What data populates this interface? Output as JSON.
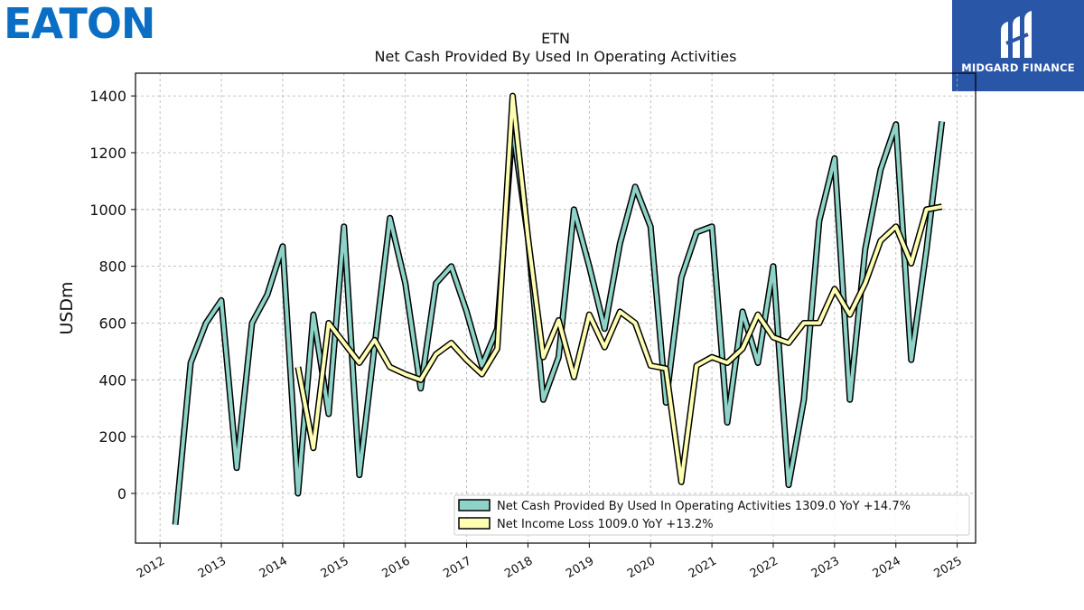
{
  "logos": {
    "eaton": "EATON",
    "midgard": "MIDGARD FINANCE"
  },
  "colors": {
    "ocf": "#8dd3c7",
    "net_income": "#ffffb3",
    "outline": "#000000",
    "grid": "#b0b0b0",
    "eaton_blue": "#0a6fc4",
    "midgard_blue": "#2a56a8"
  },
  "chart_data": {
    "type": "line",
    "title": "ETN",
    "subtitle": "Net Cash Provided By Used In Operating Activities",
    "xlabel": "",
    "ylabel": "USDm",
    "xlim": [
      2011.6,
      2025.3
    ],
    "ylim": [
      -175,
      1480
    ],
    "x_ticks": [
      "2012",
      "2013",
      "2014",
      "2015",
      "2016",
      "2017",
      "2018",
      "2019",
      "2020",
      "2021",
      "2022",
      "2023",
      "2024",
      "2025"
    ],
    "y_ticks": [
      "0",
      "200",
      "400",
      "600",
      "800",
      "1000",
      "1200",
      "1400"
    ],
    "grid": true,
    "legend_position": "lower right",
    "series": [
      {
        "name": "Net Cash Provided By Used In Operating Activities",
        "legend_label": "Net Cash Provided By Used In Operating Activities  1309.0 YoY +14.7%",
        "color": "#8dd3c7",
        "x": [
          2012.25,
          2012.5,
          2012.75,
          2013.0,
          2013.25,
          2013.5,
          2013.75,
          2014.0,
          2014.25,
          2014.5,
          2014.75,
          2015.0,
          2015.25,
          2015.5,
          2015.75,
          2016.0,
          2016.25,
          2016.5,
          2016.75,
          2017.0,
          2017.25,
          2017.5,
          2017.75,
          2018.0,
          2018.25,
          2018.5,
          2018.75,
          2019.0,
          2019.25,
          2019.5,
          2019.75,
          2020.0,
          2020.25,
          2020.5,
          2020.75,
          2021.0,
          2021.25,
          2021.5,
          2021.75,
          2022.0,
          2022.25,
          2022.5,
          2022.75,
          2023.0,
          2023.25,
          2023.5,
          2023.75,
          2024.0,
          2024.25,
          2024.5,
          2024.75
        ],
        "values": [
          -110,
          460,
          600,
          680,
          90,
          600,
          700,
          870,
          0,
          630,
          280,
          940,
          65,
          520,
          970,
          740,
          370,
          740,
          800,
          640,
          450,
          580,
          1290,
          900,
          330,
          480,
          1000,
          800,
          580,
          880,
          1080,
          940,
          320,
          760,
          920,
          940,
          250,
          640,
          460,
          800,
          30,
          330,
          960,
          1180,
          330,
          860,
          1140,
          1300,
          470,
          860,
          1310
        ]
      },
      {
        "name": "Net Income Loss",
        "legend_label": "Net Income Loss  1009.0 YoY +13.2%",
        "color": "#ffffb3",
        "x": [
          2014.25,
          2014.5,
          2014.75,
          2015.0,
          2015.25,
          2015.5,
          2015.75,
          2016.0,
          2016.25,
          2016.5,
          2016.75,
          2017.0,
          2017.25,
          2017.5,
          2017.75,
          2018.0,
          2018.25,
          2018.5,
          2018.75,
          2019.0,
          2019.25,
          2019.5,
          2019.75,
          2020.0,
          2020.25,
          2020.5,
          2020.75,
          2021.0,
          2021.25,
          2021.5,
          2021.75,
          2022.0,
          2022.25,
          2022.5,
          2022.75,
          2023.0,
          2023.25,
          2023.5,
          2023.75,
          2024.0,
          2024.25,
          2024.5,
          2024.75
        ],
        "values": [
          445,
          160,
          600,
          530,
          460,
          540,
          445,
          420,
          400,
          490,
          530,
          470,
          420,
          510,
          1400,
          900,
          480,
          610,
          410,
          630,
          515,
          640,
          600,
          450,
          440,
          40,
          450,
          480,
          460,
          510,
          630,
          550,
          530,
          600,
          600,
          720,
          630,
          740,
          890,
          940,
          810,
          1000,
          1010
        ]
      }
    ]
  }
}
